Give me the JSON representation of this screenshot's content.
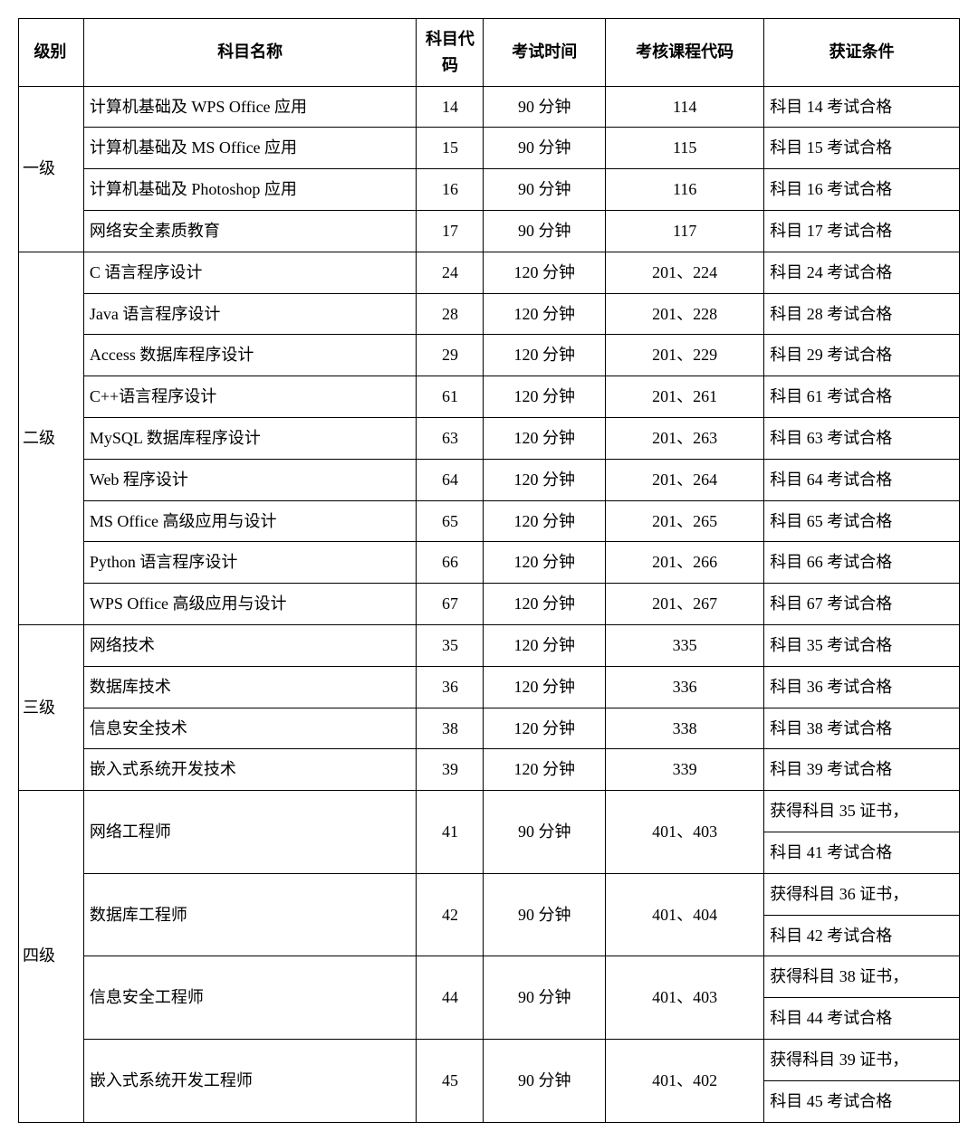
{
  "headers": {
    "level": "级别",
    "name": "科目名称",
    "code": "科目代码",
    "time": "考试时间",
    "course": "考核课程代码",
    "cert": "获证条件"
  },
  "levels": [
    {
      "label": "一级",
      "rows": [
        {
          "name": "计算机基础及 WPS Office 应用",
          "code": "14",
          "time": "90 分钟",
          "course": "114",
          "cert": [
            "科目 14 考试合格"
          ]
        },
        {
          "name": "计算机基础及 MS Office 应用",
          "code": "15",
          "time": "90 分钟",
          "course": "115",
          "cert": [
            "科目 15 考试合格"
          ]
        },
        {
          "name": "计算机基础及 Photoshop 应用",
          "code": "16",
          "time": "90 分钟",
          "course": "116",
          "cert": [
            "科目 16 考试合格"
          ]
        },
        {
          "name": "网络安全素质教育",
          "code": "17",
          "time": "90 分钟",
          "course": "117",
          "cert": [
            "科目 17 考试合格"
          ]
        }
      ]
    },
    {
      "label": "二级",
      "rows": [
        {
          "name": "C 语言程序设计",
          "code": "24",
          "time": "120 分钟",
          "course": "201、224",
          "cert": [
            "科目 24 考试合格"
          ]
        },
        {
          "name": "Java 语言程序设计",
          "code": "28",
          "time": "120 分钟",
          "course": "201、228",
          "cert": [
            "科目 28 考试合格"
          ]
        },
        {
          "name": "Access 数据库程序设计",
          "code": "29",
          "time": "120 分钟",
          "course": "201、229",
          "cert": [
            "科目 29 考试合格"
          ]
        },
        {
          "name": "C++语言程序设计",
          "code": "61",
          "time": "120 分钟",
          "course": "201、261",
          "cert": [
            "科目 61 考试合格"
          ]
        },
        {
          "name": "MySQL 数据库程序设计",
          "code": "63",
          "time": "120 分钟",
          "course": "201、263",
          "cert": [
            "科目 63 考试合格"
          ]
        },
        {
          "name": "Web 程序设计",
          "code": "64",
          "time": "120 分钟",
          "course": "201、264",
          "cert": [
            "科目 64 考试合格"
          ]
        },
        {
          "name": "MS Office 高级应用与设计",
          "code": "65",
          "time": "120 分钟",
          "course": "201、265",
          "cert": [
            "科目 65 考试合格"
          ]
        },
        {
          "name": "Python 语言程序设计",
          "code": "66",
          "time": "120 分钟",
          "course": "201、266",
          "cert": [
            "科目 66 考试合格"
          ]
        },
        {
          "name": "WPS Office 高级应用与设计",
          "code": "67",
          "time": "120 分钟",
          "course": "201、267",
          "cert": [
            "科目 67 考试合格"
          ]
        }
      ]
    },
    {
      "label": "三级",
      "rows": [
        {
          "name": "网络技术",
          "code": "35",
          "time": "120 分钟",
          "course": "335",
          "cert": [
            "科目 35 考试合格"
          ]
        },
        {
          "name": "数据库技术",
          "code": "36",
          "time": "120 分钟",
          "course": "336",
          "cert": [
            "科目 36 考试合格"
          ]
        },
        {
          "name": "信息安全技术",
          "code": "38",
          "time": "120 分钟",
          "course": "338",
          "cert": [
            "科目 38 考试合格"
          ]
        },
        {
          "name": "嵌入式系统开发技术",
          "code": "39",
          "time": "120 分钟",
          "course": "339",
          "cert": [
            "科目 39 考试合格"
          ]
        }
      ]
    },
    {
      "label": "四级",
      "rows": [
        {
          "name": "网络工程师",
          "code": "41",
          "time": "90 分钟",
          "course": "401、403",
          "cert": [
            "获得科目 35 证书，",
            "科目 41 考试合格"
          ]
        },
        {
          "name": "数据库工程师",
          "code": "42",
          "time": "90 分钟",
          "course": "401、404",
          "cert": [
            "获得科目 36 证书，",
            "科目 42 考试合格"
          ]
        },
        {
          "name": "信息安全工程师",
          "code": "44",
          "time": "90 分钟",
          "course": "401、403",
          "cert": [
            "获得科目 38 证书，",
            "科目 44 考试合格"
          ]
        },
        {
          "name": "嵌入式系统开发工程师",
          "code": "45",
          "time": "90 分钟",
          "course": "401、402",
          "cert": [
            "获得科目 39 证书，",
            "科目 45 考试合格"
          ]
        }
      ]
    }
  ]
}
